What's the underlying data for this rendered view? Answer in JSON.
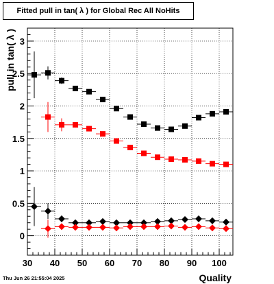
{
  "title": "Fitted pull in tan( λ ) for Global Rec All NoHits",
  "footer_date": "Thu Jun 26 21:55:04 2025",
  "chart_data": {
    "type": "scatter",
    "xlabel": "Quality",
    "ylabel": "pull in tan( λ )",
    "xlim": [
      30,
      105
    ],
    "ylim": [
      -0.3,
      3.2
    ],
    "x_ticks": [
      30,
      40,
      50,
      60,
      70,
      80,
      90,
      100
    ],
    "y_ticks": [
      0,
      0.5,
      1,
      1.5,
      2,
      2.5,
      3
    ],
    "grid": true,
    "series": [
      {
        "marker": "square",
        "color": "#000000",
        "points": [
          {
            "x": 32.5,
            "y": 2.48,
            "yerr": 0.36
          },
          {
            "x": 37.5,
            "y": 2.51,
            "yerr": 0.1
          },
          {
            "x": 42.5,
            "y": 2.39,
            "yerr": 0.05
          },
          {
            "x": 47.5,
            "y": 2.27,
            "yerr": 0.02
          },
          {
            "x": 52.5,
            "y": 2.22,
            "yerr": 0.02
          },
          {
            "x": 57.5,
            "y": 2.1,
            "yerr": 0.01
          },
          {
            "x": 62.5,
            "y": 1.96,
            "yerr": 0.01
          },
          {
            "x": 67.5,
            "y": 1.83,
            "yerr": 0.01
          },
          {
            "x": 72.5,
            "y": 1.72,
            "yerr": 0.01
          },
          {
            "x": 77.5,
            "y": 1.66,
            "yerr": 0.01
          },
          {
            "x": 82.5,
            "y": 1.64,
            "yerr": 0.01
          },
          {
            "x": 87.5,
            "y": 1.69,
            "yerr": 0.01
          },
          {
            "x": 92.5,
            "y": 1.82,
            "yerr": 0.01
          },
          {
            "x": 97.5,
            "y": 1.88,
            "yerr": 0.01
          },
          {
            "x": 102.5,
            "y": 1.91,
            "yerr": 0.01
          }
        ]
      },
      {
        "marker": "square",
        "color": "#ff0000",
        "points": [
          {
            "x": 37.5,
            "y": 1.83,
            "yerr": 0.23
          },
          {
            "x": 42.5,
            "y": 1.71,
            "yerr": 0.1
          },
          {
            "x": 47.5,
            "y": 1.71,
            "yerr": 0.04
          },
          {
            "x": 52.5,
            "y": 1.65,
            "yerr": 0.02
          },
          {
            "x": 57.5,
            "y": 1.57,
            "yerr": 0.02
          },
          {
            "x": 62.5,
            "y": 1.46,
            "yerr": 0.01
          },
          {
            "x": 67.5,
            "y": 1.36,
            "yerr": 0.01
          },
          {
            "x": 72.5,
            "y": 1.27,
            "yerr": 0.01
          },
          {
            "x": 77.5,
            "y": 1.21,
            "yerr": 0.01
          },
          {
            "x": 82.5,
            "y": 1.18,
            "yerr": 0.01
          },
          {
            "x": 87.5,
            "y": 1.17,
            "yerr": 0.01
          },
          {
            "x": 92.5,
            "y": 1.15,
            "yerr": 0.01
          },
          {
            "x": 97.5,
            "y": 1.11,
            "yerr": 0.01
          },
          {
            "x": 102.5,
            "y": 1.1,
            "yerr": 0.01
          }
        ]
      },
      {
        "marker": "diamond",
        "color": "#000000",
        "points": [
          {
            "x": 32.5,
            "y": 0.45,
            "yerr": 0.3
          },
          {
            "x": 37.5,
            "y": 0.38,
            "yerr": 0.12
          },
          {
            "x": 42.5,
            "y": 0.26,
            "yerr": 0.05
          },
          {
            "x": 47.5,
            "y": 0.2,
            "yerr": 0.03
          },
          {
            "x": 52.5,
            "y": 0.2,
            "yerr": 0.02
          },
          {
            "x": 57.5,
            "y": 0.22,
            "yerr": 0.02
          },
          {
            "x": 62.5,
            "y": 0.2,
            "yerr": 0.01
          },
          {
            "x": 67.5,
            "y": 0.2,
            "yerr": 0.01
          },
          {
            "x": 72.5,
            "y": 0.2,
            "yerr": 0.01
          },
          {
            "x": 77.5,
            "y": 0.22,
            "yerr": 0.01
          },
          {
            "x": 82.5,
            "y": 0.23,
            "yerr": 0.01
          },
          {
            "x": 87.5,
            "y": 0.25,
            "yerr": 0.01
          },
          {
            "x": 92.5,
            "y": 0.26,
            "yerr": 0.01
          },
          {
            "x": 97.5,
            "y": 0.23,
            "yerr": 0.01
          },
          {
            "x": 102.5,
            "y": 0.21,
            "yerr": 0.01
          }
        ]
      },
      {
        "marker": "diamond",
        "color": "#ff0000",
        "points": [
          {
            "x": 37.5,
            "y": 0.11,
            "yerr": 0.14
          },
          {
            "x": 42.5,
            "y": 0.14,
            "yerr": 0.05
          },
          {
            "x": 47.5,
            "y": 0.13,
            "yerr": 0.03
          },
          {
            "x": 52.5,
            "y": 0.13,
            "yerr": 0.02
          },
          {
            "x": 57.5,
            "y": 0.13,
            "yerr": 0.02
          },
          {
            "x": 62.5,
            "y": 0.12,
            "yerr": 0.01
          },
          {
            "x": 67.5,
            "y": 0.14,
            "yerr": 0.01
          },
          {
            "x": 72.5,
            "y": 0.14,
            "yerr": 0.01
          },
          {
            "x": 77.5,
            "y": 0.14,
            "yerr": 0.01
          },
          {
            "x": 82.5,
            "y": 0.15,
            "yerr": 0.01
          },
          {
            "x": 87.5,
            "y": 0.13,
            "yerr": 0.01
          },
          {
            "x": 92.5,
            "y": 0.14,
            "yerr": 0.01
          },
          {
            "x": 97.5,
            "y": 0.12,
            "yerr": 0.01
          },
          {
            "x": 102.5,
            "y": 0.11,
            "yerr": 0.01
          }
        ]
      }
    ]
  }
}
